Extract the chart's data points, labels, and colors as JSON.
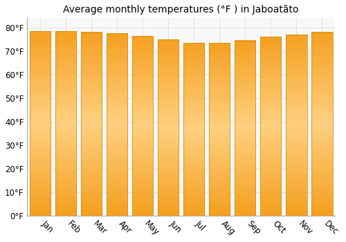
{
  "title": "Average monthly temperatures (°F ) in Jaboatãto",
  "months": [
    "Jan",
    "Feb",
    "Mar",
    "Apr",
    "May",
    "Jun",
    "Jul",
    "Aug",
    "Sep",
    "Oct",
    "Nov",
    "Dec"
  ],
  "values": [
    78.5,
    78.5,
    78,
    77.5,
    76.5,
    75,
    73.5,
    73.5,
    74.5,
    76,
    77,
    78
  ],
  "bar_color_center": "#FFD080",
  "bar_color_edge": "#F5A020",
  "bar_edge_color": "#CC8800",
  "ylim": [
    0,
    84
  ],
  "yticks": [
    0,
    10,
    20,
    30,
    40,
    50,
    60,
    70,
    80
  ],
  "background_color": "#ffffff",
  "plot_bg_color": "#f8f8f8",
  "grid_color": "#e0e0e0",
  "title_fontsize": 10,
  "tick_fontsize": 8.5,
  "xlabel_rotation": -45
}
